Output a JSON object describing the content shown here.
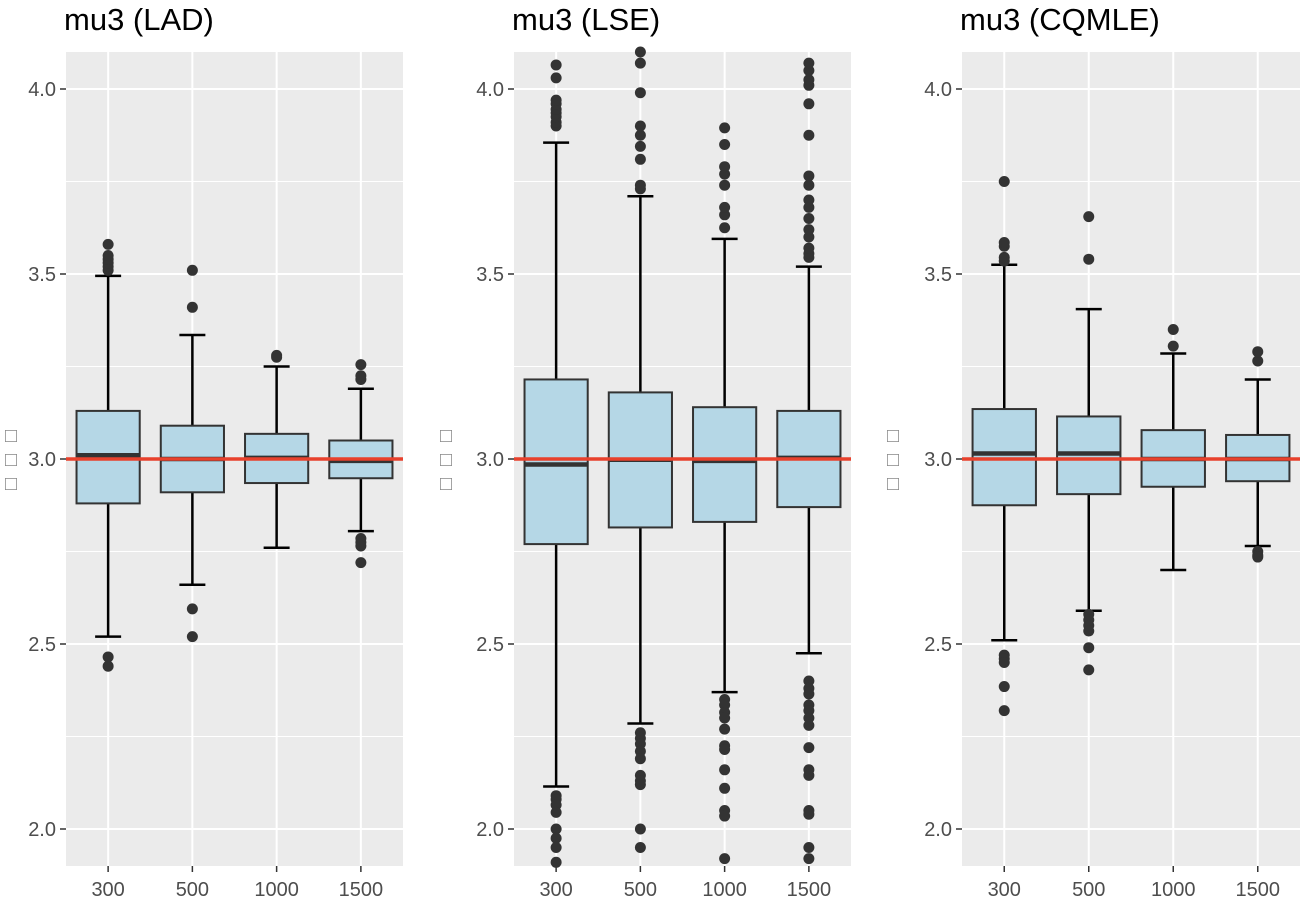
{
  "chart_data": [
    {
      "type": "boxplot",
      "title": "mu3 (LAD)",
      "ylabel": "□□□",
      "xlabel": "",
      "categories": [
        "300",
        "500",
        "1000",
        "1500"
      ],
      "ylim": [
        1.9,
        4.1
      ],
      "yticks": [
        2.0,
        2.5,
        3.0,
        3.5,
        4.0
      ],
      "ytick_labels": [
        "2.0",
        "2.5",
        "3.0",
        "3.5",
        "4.0"
      ],
      "reference_line": 3.0,
      "reference_color": "#e8412c",
      "box_fill": "#b5d7e6",
      "panel_bg": "#ebebeb",
      "boxes": [
        {
          "q1": 2.88,
          "median": 3.01,
          "q3": 3.13,
          "whisker_low": 2.52,
          "whisker_high": 3.495,
          "outliers": [
            3.51,
            3.52,
            3.53,
            3.54,
            3.55,
            3.58,
            2.465,
            2.44
          ]
        },
        {
          "q1": 2.91,
          "median": 3.0,
          "q3": 3.09,
          "whisker_low": 2.66,
          "whisker_high": 3.335,
          "outliers": [
            3.41,
            3.51,
            2.595,
            2.52
          ]
        },
        {
          "q1": 2.935,
          "median": 3.003,
          "q3": 3.068,
          "whisker_low": 2.76,
          "whisker_high": 3.25,
          "outliers": [
            3.275,
            3.28
          ]
        },
        {
          "q1": 2.948,
          "median": 2.995,
          "q3": 3.05,
          "whisker_low": 2.805,
          "whisker_high": 3.19,
          "outliers": [
            3.215,
            3.225,
            3.255,
            2.785,
            2.775,
            2.765,
            2.72
          ]
        }
      ]
    },
    {
      "type": "boxplot",
      "title": "mu3 (LSE)",
      "ylabel": "□□□",
      "xlabel": "",
      "categories": [
        "300",
        "500",
        "1000",
        "1500"
      ],
      "ylim": [
        1.9,
        4.1
      ],
      "yticks": [
        2.0,
        2.5,
        3.0,
        3.5,
        4.0
      ],
      "ytick_labels": [
        "2.0",
        "2.5",
        "3.0",
        "3.5",
        "4.0"
      ],
      "reference_line": 3.0,
      "reference_color": "#e8412c",
      "box_fill": "#b5d7e6",
      "panel_bg": "#ebebeb",
      "boxes": [
        {
          "q1": 2.77,
          "median": 2.985,
          "q3": 3.215,
          "whisker_low": 2.115,
          "whisker_high": 3.855,
          "outliers": [
            3.9,
            3.91,
            3.925,
            3.935,
            3.945,
            3.96,
            3.97,
            4.03,
            4.065,
            2.09,
            2.08,
            2.065,
            2.045,
            2.0,
            1.975,
            1.95,
            1.91
          ]
        },
        {
          "q1": 2.815,
          "median": 2.998,
          "q3": 3.18,
          "whisker_low": 2.285,
          "whisker_high": 3.71,
          "outliers": [
            3.73,
            3.74,
            3.81,
            3.845,
            3.875,
            3.9,
            3.99,
            4.07,
            4.1,
            2.26,
            2.245,
            2.23,
            2.21,
            2.19,
            2.145,
            2.13,
            2.12,
            2.0,
            1.95
          ]
        },
        {
          "q1": 2.83,
          "median": 2.995,
          "q3": 3.14,
          "whisker_low": 2.37,
          "whisker_high": 3.595,
          "outliers": [
            3.625,
            3.66,
            3.68,
            3.74,
            3.77,
            3.79,
            3.85,
            3.895,
            2.35,
            2.335,
            2.315,
            2.3,
            2.27,
            2.225,
            2.215,
            2.16,
            2.11,
            2.05,
            2.035,
            1.92
          ]
        },
        {
          "q1": 2.87,
          "median": 3.003,
          "q3": 3.13,
          "whisker_low": 2.475,
          "whisker_high": 3.52,
          "outliers": [
            3.545,
            3.555,
            3.57,
            3.6,
            3.62,
            3.65,
            3.68,
            3.7,
            3.74,
            3.765,
            3.875,
            3.96,
            4.01,
            4.025,
            4.05,
            4.07,
            2.4,
            2.38,
            2.365,
            2.335,
            2.32,
            2.3,
            2.28,
            2.22,
            2.16,
            2.145,
            2.05,
            2.04,
            1.95,
            1.92
          ]
        }
      ]
    },
    {
      "type": "boxplot",
      "title": "mu3 (CQMLE)",
      "ylabel": "□□□",
      "xlabel": "",
      "categories": [
        "300",
        "500",
        "1000",
        "1500"
      ],
      "ylim": [
        1.9,
        4.1
      ],
      "yticks": [
        2.0,
        2.5,
        3.0,
        3.5,
        4.0
      ],
      "ytick_labels": [
        "2.0",
        "2.5",
        "3.0",
        "3.5",
        "4.0"
      ],
      "reference_line": 3.0,
      "reference_color": "#e8412c",
      "box_fill": "#b5d7e6",
      "panel_bg": "#ebebeb",
      "boxes": [
        {
          "q1": 2.875,
          "median": 3.015,
          "q3": 3.135,
          "whisker_low": 2.51,
          "whisker_high": 3.525,
          "outliers": [
            3.535,
            3.545,
            3.575,
            3.585,
            3.75,
            2.47,
            2.46,
            2.45,
            2.385,
            2.32
          ]
        },
        {
          "q1": 2.905,
          "median": 3.015,
          "q3": 3.115,
          "whisker_low": 2.59,
          "whisker_high": 3.405,
          "outliers": [
            3.54,
            3.655,
            2.58,
            2.565,
            2.55,
            2.535,
            2.49,
            2.43
          ]
        },
        {
          "q1": 2.925,
          "median": 3.0,
          "q3": 3.078,
          "whisker_low": 2.7,
          "whisker_high": 3.285,
          "outliers": [
            3.305,
            3.35
          ]
        },
        {
          "q1": 2.94,
          "median": 3.0,
          "q3": 3.065,
          "whisker_low": 2.765,
          "whisker_high": 3.215,
          "outliers": [
            3.265,
            3.29,
            2.75,
            2.74,
            2.735
          ]
        }
      ]
    }
  ]
}
